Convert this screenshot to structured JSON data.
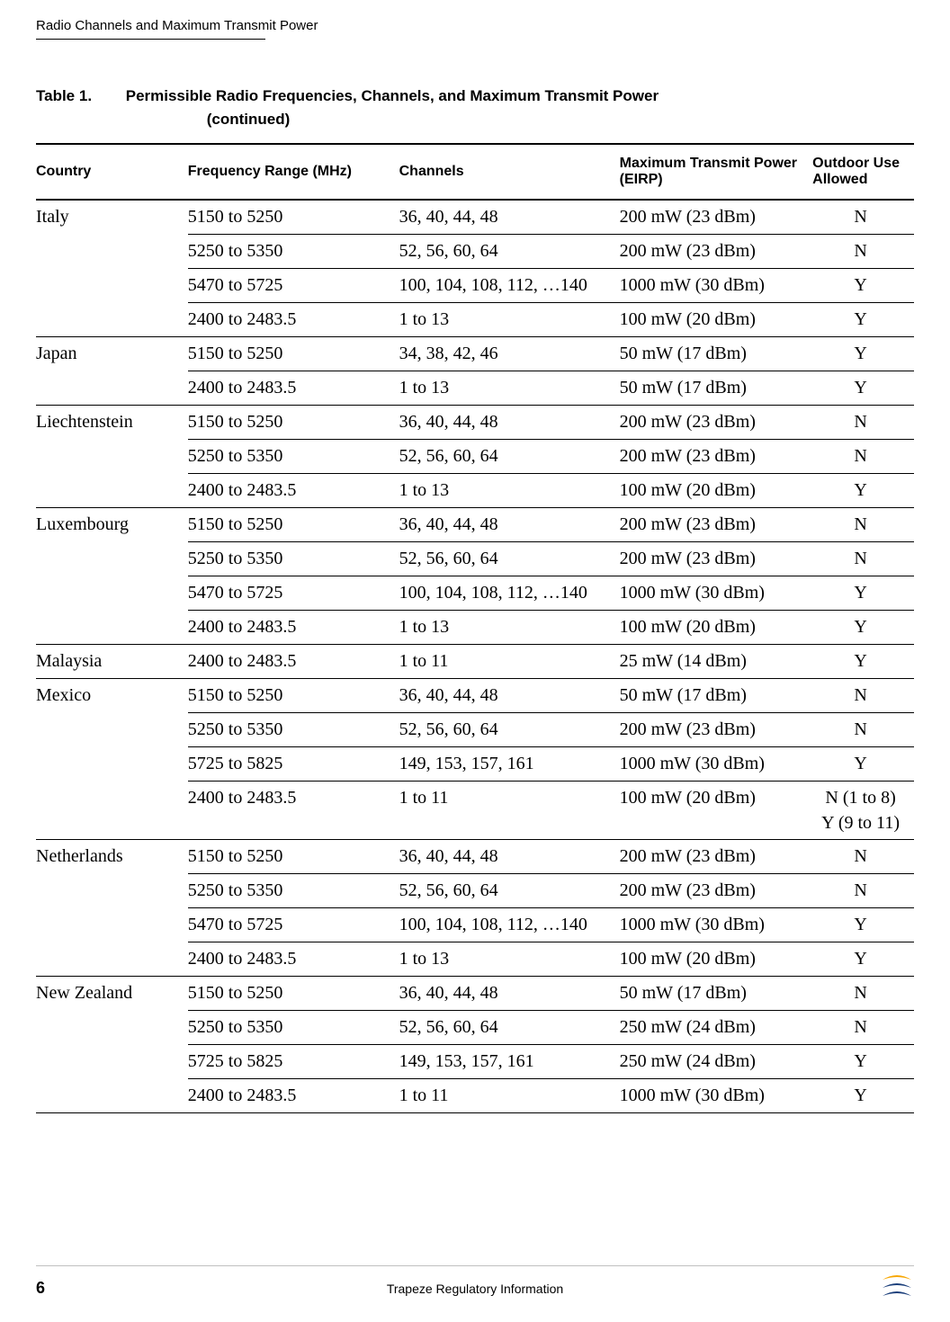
{
  "running_header": "Radio Channels and Maximum Transmit Power",
  "table": {
    "label": "Table 1.",
    "title": "Permissible Radio Frequencies, Channels, and Maximum Transmit Power",
    "continued": "(continued)",
    "columns": {
      "country": "Country",
      "freq": "Frequency Range (MHz)",
      "channels": "Channels",
      "power": "Maximum Transmit Power (EIRP)",
      "outdoor": "Outdoor Use Allowed"
    },
    "groups": [
      {
        "country": "Italy",
        "rows": [
          {
            "freq": "5150 to 5250",
            "chan": "36, 40, 44, 48",
            "power": "200 mW (23 dBm)",
            "outdoor": "N"
          },
          {
            "freq": "5250 to 5350",
            "chan": "52, 56, 60, 64",
            "power": "200 mW (23 dBm)",
            "outdoor": "N"
          },
          {
            "freq": "5470 to 5725",
            "chan": "100, 104, 108, 112, …140",
            "power": "1000 mW (30 dBm)",
            "outdoor": "Y"
          },
          {
            "freq": "2400 to 2483.5",
            "chan": "1 to 13",
            "power": "100 mW (20 dBm)",
            "outdoor": "Y"
          }
        ]
      },
      {
        "country": "Japan",
        "rows": [
          {
            "freq": "5150 to 5250",
            "chan": "34, 38, 42, 46",
            "power": "50 mW (17 dBm)",
            "outdoor": "Y"
          },
          {
            "freq": "2400 to 2483.5",
            "chan": "1 to 13",
            "power": "50 mW (17 dBm)",
            "outdoor": "Y"
          }
        ]
      },
      {
        "country": "Liechtenstein",
        "rows": [
          {
            "freq": "5150 to 5250",
            "chan": "36, 40, 44, 48",
            "power": "200 mW (23 dBm)",
            "outdoor": "N"
          },
          {
            "freq": "5250 to 5350",
            "chan": "52, 56, 60, 64",
            "power": "200 mW (23 dBm)",
            "outdoor": "N"
          },
          {
            "freq": "2400 to 2483.5",
            "chan": "1 to 13",
            "power": "100 mW (20 dBm)",
            "outdoor": "Y"
          }
        ]
      },
      {
        "country": "Luxembourg",
        "rows": [
          {
            "freq": "5150 to 5250",
            "chan": "36, 40, 44, 48",
            "power": "200 mW (23 dBm)",
            "outdoor": "N"
          },
          {
            "freq": "5250 to 5350",
            "chan": "52, 56, 60, 64",
            "power": "200 mW (23 dBm)",
            "outdoor": "N"
          },
          {
            "freq": "5470 to 5725",
            "chan": "100, 104, 108, 112, …140",
            "power": "1000 mW (30 dBm)",
            "outdoor": "Y"
          },
          {
            "freq": "2400 to 2483.5",
            "chan": "1 to 13",
            "power": "100 mW (20 dBm)",
            "outdoor": "Y"
          }
        ]
      },
      {
        "country": "Malaysia",
        "rows": [
          {
            "freq": "2400 to 2483.5",
            "chan": "1 to 11",
            "power": "25 mW (14 dBm)",
            "outdoor": "Y"
          }
        ]
      },
      {
        "country": "Mexico",
        "rows": [
          {
            "freq": "5150 to 5250",
            "chan": "36, 40, 44, 48",
            "power": "50 mW (17 dBm)",
            "outdoor": "N"
          },
          {
            "freq": "5250 to 5350",
            "chan": "52, 56, 60, 64",
            "power": "200 mW (23 dBm)",
            "outdoor": "N"
          },
          {
            "freq": "5725 to 5825",
            "chan": "149, 153, 157, 161",
            "power": "1000 mW (30 dBm)",
            "outdoor": "Y"
          },
          {
            "freq": "2400 to 2483.5",
            "chan": "1 to 11",
            "power": "100 mW (20 dBm)",
            "outdoor_multi": [
              "N (1 to 8)",
              "Y (9 to 11)"
            ]
          }
        ]
      },
      {
        "country": "Netherlands",
        "rows": [
          {
            "freq": "5150 to 5250",
            "chan": "36, 40, 44, 48",
            "power": "200 mW (23 dBm)",
            "outdoor": "N"
          },
          {
            "freq": "5250 to 5350",
            "chan": "52, 56, 60, 64",
            "power": "200 mW (23 dBm)",
            "outdoor": "N"
          },
          {
            "freq": "5470 to 5725",
            "chan": "100, 104, 108, 112, …140",
            "power": "1000 mW (30 dBm)",
            "outdoor": "Y"
          },
          {
            "freq": "2400 to 2483.5",
            "chan": "1 to 13",
            "power": "100 mW (20 dBm)",
            "outdoor": "Y"
          }
        ]
      },
      {
        "country": "New Zealand",
        "rows": [
          {
            "freq": "5150 to 5250",
            "chan": "36, 40, 44, 48",
            "power": "50 mW (17 dBm)",
            "outdoor": "N"
          },
          {
            "freq": "5250 to 5350",
            "chan": "52, 56, 60, 64",
            "power": "250 mW (24 dBm)",
            "outdoor": "N"
          },
          {
            "freq": "5725 to 5825",
            "chan": "149, 153, 157, 161",
            "power": "250 mW (24 dBm)",
            "outdoor": "Y"
          },
          {
            "freq": "2400 to 2483.5",
            "chan": "1 to 11",
            "power": "1000 mW (30 dBm)",
            "outdoor": "Y"
          }
        ]
      }
    ]
  },
  "footer": {
    "page_number": "6",
    "title": "Trapeze Regulatory Information"
  },
  "style": {
    "text_color": "#000000",
    "rule_color": "#000000",
    "footer_rule_color": "#c0c0c0",
    "logo_colors": {
      "top": "#f7a600",
      "mid": "#1a3e7a",
      "bottom": "#1a3e7a"
    }
  }
}
